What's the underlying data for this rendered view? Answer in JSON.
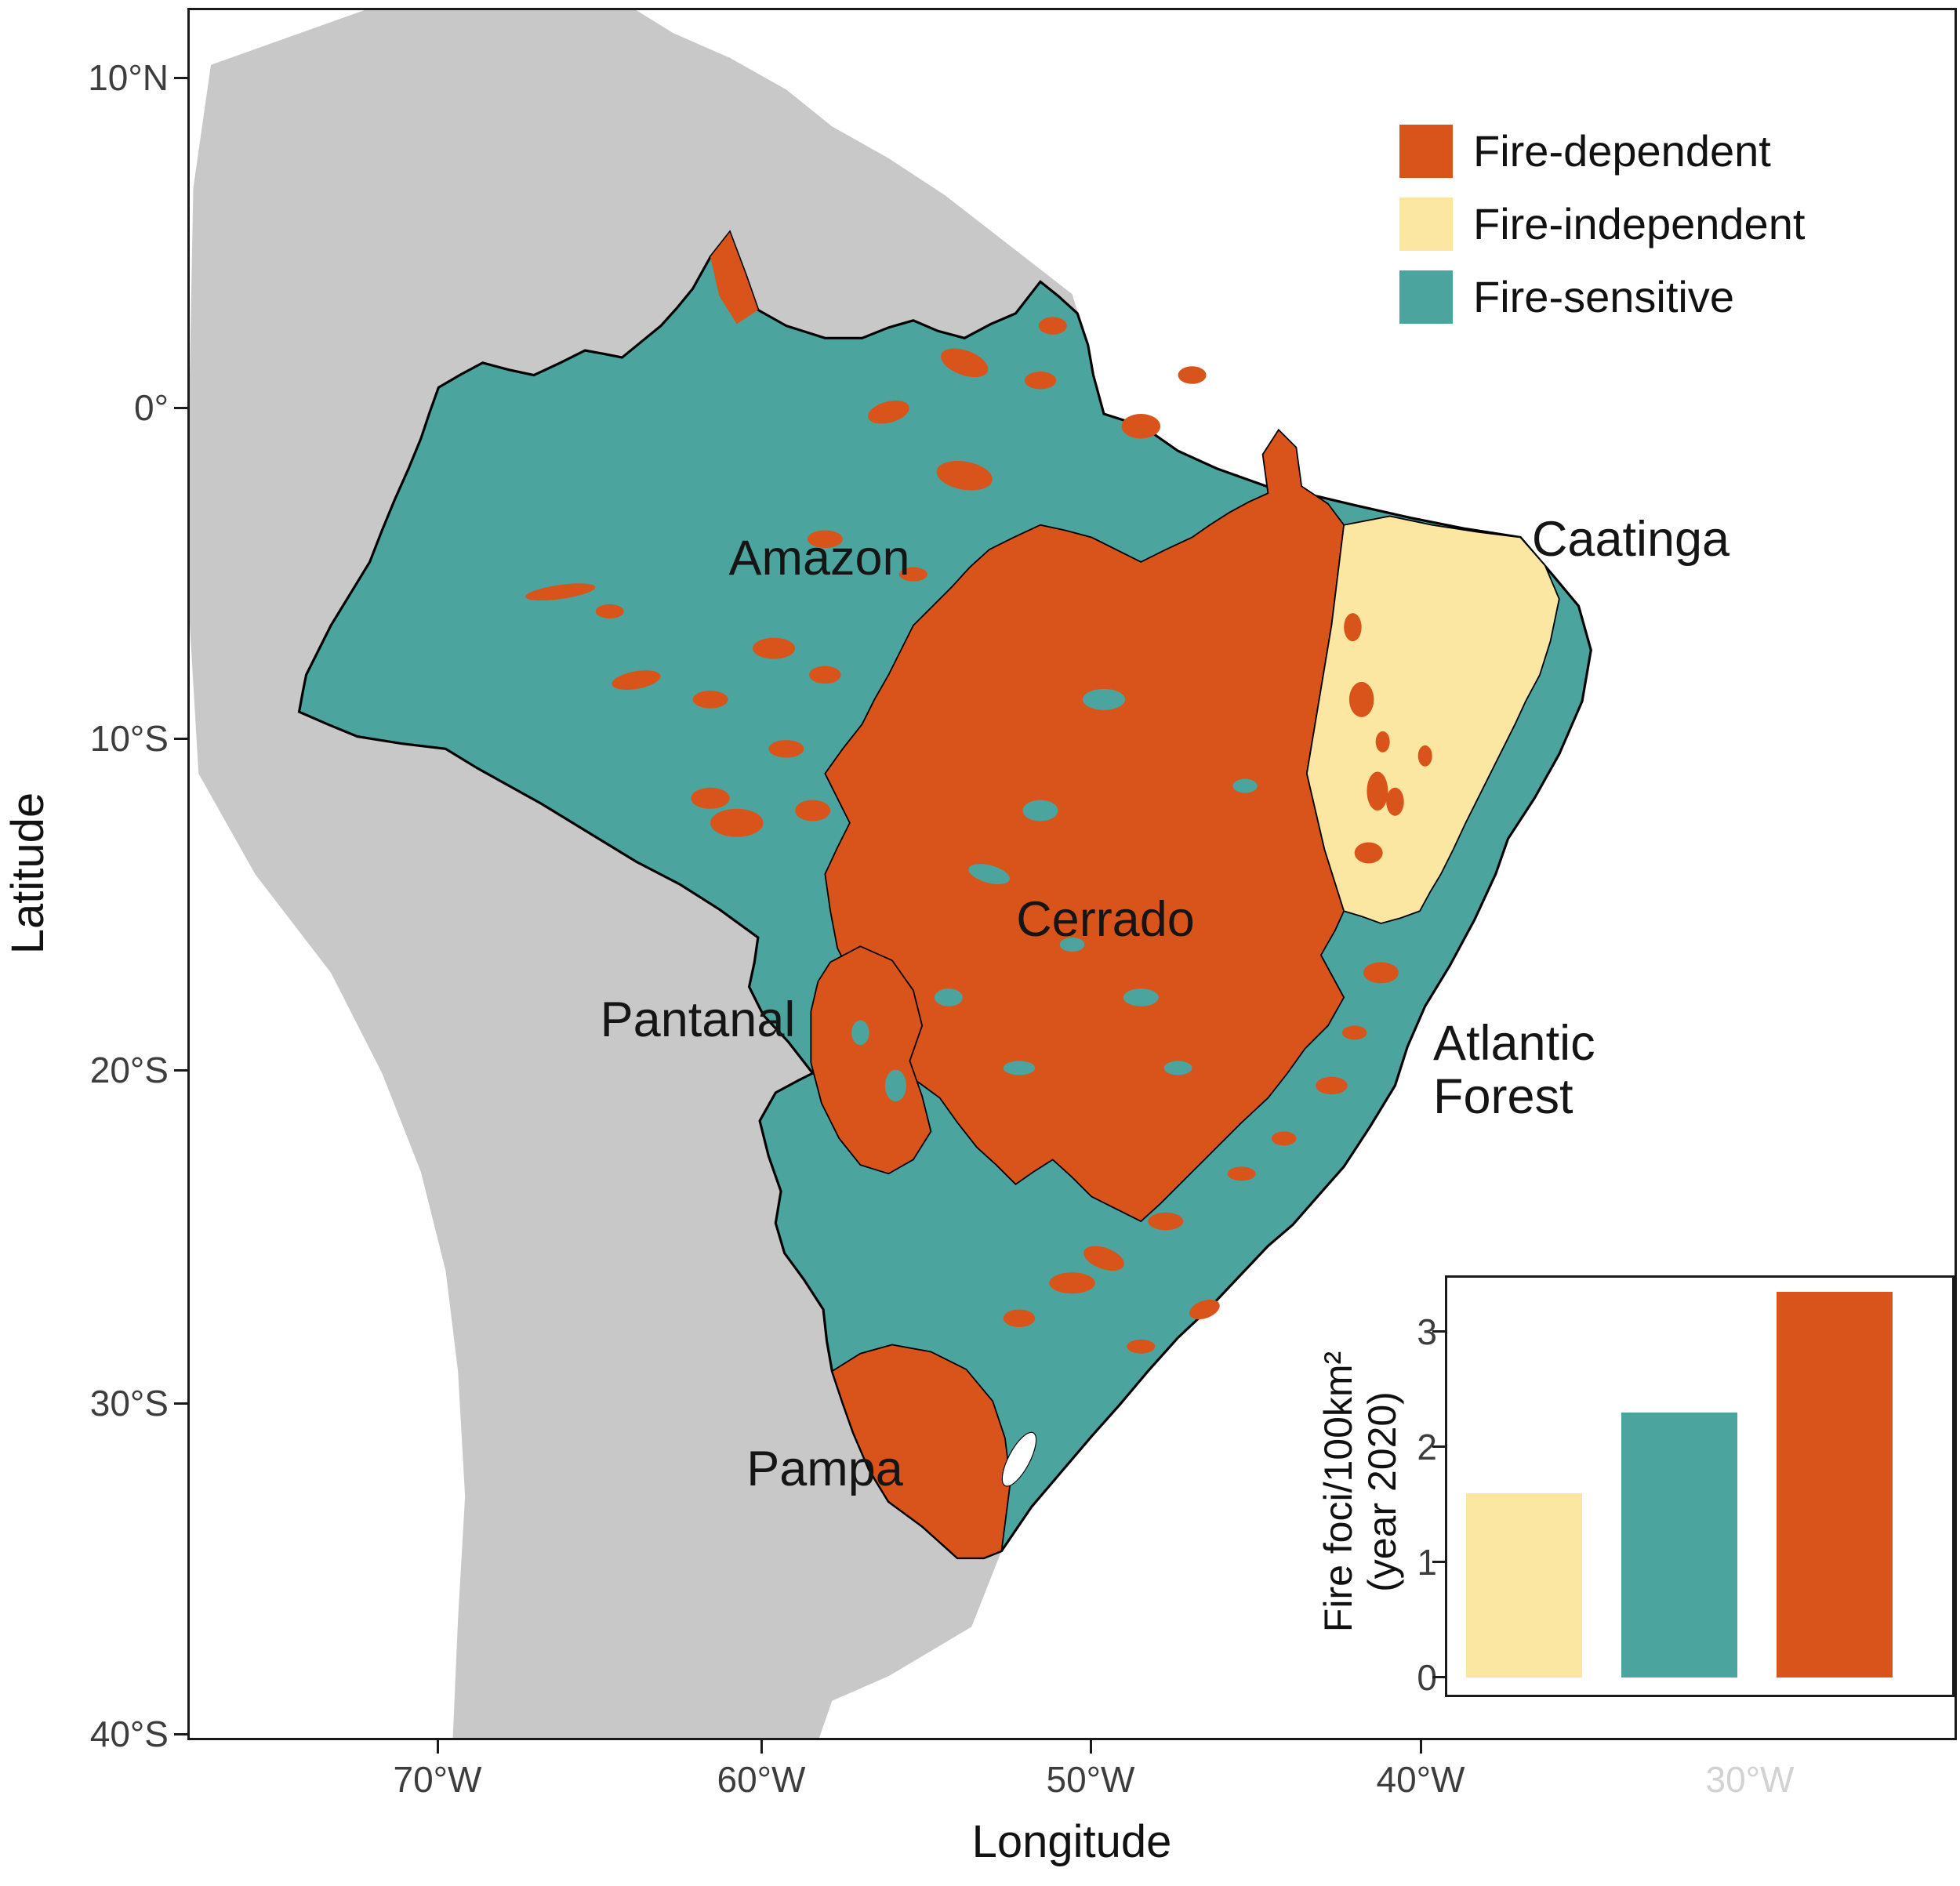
{
  "figure": {
    "axes": {
      "x_title": "Longitude",
      "y_title": "Latitude",
      "x_ticks": [
        "70°W",
        "60°W",
        "50°W",
        "40°W"
      ],
      "x_tick_faint": "30°W",
      "y_ticks": [
        "10°N",
        "0°",
        "10°S",
        "20°S",
        "30°S",
        "40°S"
      ]
    },
    "legend": [
      {
        "label": "Fire-dependent",
        "color": "#D9541A"
      },
      {
        "label": "Fire-independent",
        "color": "#FBE7A1"
      },
      {
        "label": "Fire-sensitive",
        "color": "#4BA49D"
      }
    ],
    "map_labels": {
      "amazon": "Amazon",
      "caatinga": "Caatinga",
      "cerrado": "Cerrado",
      "pantanal": "Pantanal",
      "atlantic_forest_line1": "Atlantic",
      "atlantic_forest_line2": "Forest",
      "pampa": "Pampa"
    },
    "colors": {
      "fire_dependent": "#D9541A",
      "fire_independent": "#FBE7A1",
      "fire_sensitive": "#4BA49D",
      "land_other": "#C8C8C8",
      "outline": "#000000"
    }
  },
  "chart_data": {
    "type": "bar",
    "title": "",
    "ylabel_line1": "Fire foci/100km²",
    "ylabel_line2": "(year 2020)",
    "categories": [
      "Fire-independent",
      "Fire-sensitive",
      "Fire-dependent"
    ],
    "values": [
      1.6,
      2.3,
      3.35
    ],
    "colors": [
      "#FBE7A1",
      "#4BA49D",
      "#D9541A"
    ],
    "y_ticks": [
      0,
      1,
      2,
      3
    ],
    "ylim": [
      0,
      3.5
    ],
    "grid": false,
    "legend_position": "none"
  }
}
